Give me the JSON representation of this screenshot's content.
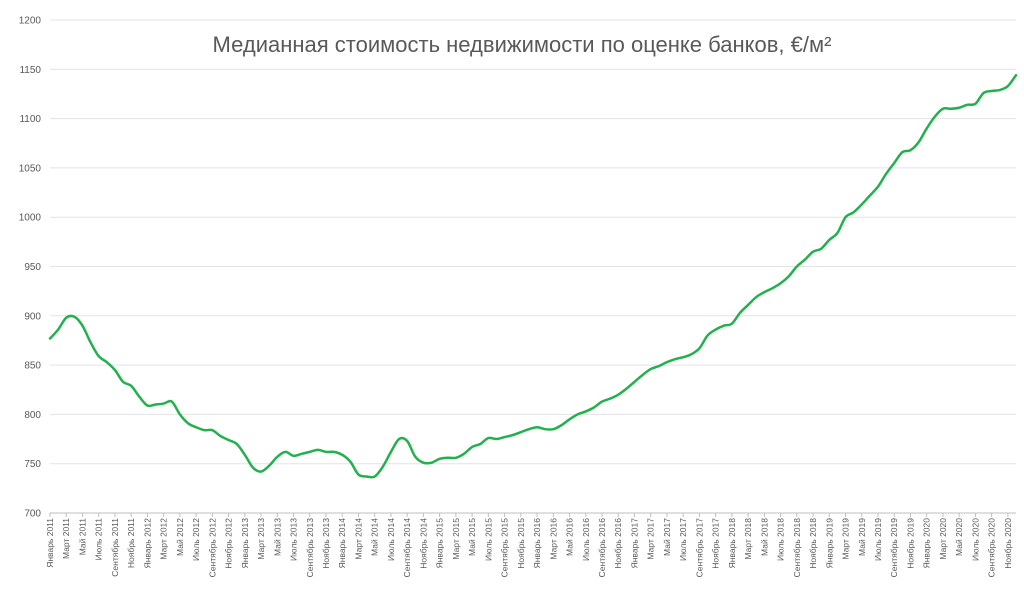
{
  "chart_data": {
    "type": "line",
    "title": "Медианная стоимость недвижимости по оценке банков, €/м²",
    "xlabel": "",
    "ylabel": "",
    "ylim": [
      700,
      1200
    ],
    "yticks": [
      700,
      750,
      800,
      850,
      900,
      950,
      1000,
      1050,
      1100,
      1150,
      1200
    ],
    "grid": true,
    "legend": "none",
    "line_color": "#22b14c",
    "x_tick_labels": [
      "Январь 2011",
      "Март 2011",
      "Май 2011",
      "Июль 2011",
      "Сентябрь 2011",
      "Ноябрь 2011",
      "Январь 2012",
      "Март 2012",
      "Май 2012",
      "Июль 2012",
      "Сентябрь 2012",
      "Ноябрь 2012",
      "Январь 2013",
      "Март 2013",
      "Май 2013",
      "Июль 2013",
      "Сентябрь 2013",
      "Ноябрь 2013",
      "Январь 2014",
      "Март 2014",
      "Май 2014",
      "Июль 2014",
      "Сентябрь 2014",
      "Ноябрь 2014",
      "Январь 2015",
      "Март 2015",
      "Май 2015",
      "Июль 2015",
      "Сентябрь 2015",
      "Ноябрь 2015",
      "Январь 2016",
      "Март 2016",
      "Май 2016",
      "Июль 2016",
      "Сентябрь 2016",
      "Ноябрь 2016",
      "Январь 2017",
      "Март 2017",
      "Май 2017",
      "Июль 2017",
      "Сентябрь 2017",
      "Ноябрь 2017",
      "Январь 2018",
      "Март 2018",
      "Май 2018",
      "Июль 2018",
      "Сентябрь 2018",
      "Ноябрь 2018",
      "Январь 2019",
      "Март 2019",
      "Май 2019",
      "Июль 2019",
      "Сентябрь 2019",
      "Ноябрь 2019",
      "Январь 2020",
      "Март 2020",
      "Май 2020",
      "Июль 2020",
      "Сентябрь 2020",
      "Ноябрь 2020"
    ],
    "x": [
      "2011-01",
      "2011-02",
      "2011-03",
      "2011-04",
      "2011-05",
      "2011-06",
      "2011-07",
      "2011-08",
      "2011-09",
      "2011-10",
      "2011-11",
      "2011-12",
      "2012-01",
      "2012-02",
      "2012-03",
      "2012-04",
      "2012-05",
      "2012-06",
      "2012-07",
      "2012-08",
      "2012-09",
      "2012-10",
      "2012-11",
      "2012-12",
      "2013-01",
      "2013-02",
      "2013-03",
      "2013-04",
      "2013-05",
      "2013-06",
      "2013-07",
      "2013-08",
      "2013-09",
      "2013-10",
      "2013-11",
      "2013-12",
      "2014-01",
      "2014-02",
      "2014-03",
      "2014-04",
      "2014-05",
      "2014-06",
      "2014-07",
      "2014-08",
      "2014-09",
      "2014-10",
      "2014-11",
      "2014-12",
      "2015-01",
      "2015-02",
      "2015-03",
      "2015-04",
      "2015-05",
      "2015-06",
      "2015-07",
      "2015-08",
      "2015-09",
      "2015-10",
      "2015-11",
      "2015-12",
      "2016-01",
      "2016-02",
      "2016-03",
      "2016-04",
      "2016-05",
      "2016-06",
      "2016-07",
      "2016-08",
      "2016-09",
      "2016-10",
      "2016-11",
      "2016-12",
      "2017-01",
      "2017-02",
      "2017-03",
      "2017-04",
      "2017-05",
      "2017-06",
      "2017-07",
      "2017-08",
      "2017-09",
      "2017-10",
      "2017-11",
      "2017-12",
      "2018-01",
      "2018-02",
      "2018-03",
      "2018-04",
      "2018-05",
      "2018-06",
      "2018-07",
      "2018-08",
      "2018-09",
      "2018-10",
      "2018-11",
      "2018-12",
      "2019-01",
      "2019-02",
      "2019-03",
      "2019-04",
      "2019-05",
      "2019-06",
      "2019-07",
      "2019-08",
      "2019-09",
      "2019-10",
      "2019-11",
      "2019-12",
      "2020-01",
      "2020-02",
      "2020-03",
      "2020-04",
      "2020-05",
      "2020-06",
      "2020-07",
      "2020-08",
      "2020-09",
      "2020-10",
      "2020-11",
      "2020-12"
    ],
    "series": [
      {
        "values": [
          877,
          886,
          898,
          899,
          890,
          873,
          859,
          853,
          845,
          833,
          829,
          818,
          809,
          810,
          811,
          813,
          800,
          791,
          787,
          784,
          784,
          778,
          774,
          770,
          759,
          746,
          742,
          748,
          757,
          762,
          758,
          760,
          762,
          764,
          762,
          762,
          759,
          752,
          739,
          737,
          737,
          747,
          762,
          775,
          773,
          757,
          751,
          751,
          755,
          756,
          756,
          760,
          767,
          770,
          776,
          775,
          777,
          779,
          782,
          785,
          787,
          785,
          785,
          789,
          795,
          800,
          803,
          807,
          813,
          816,
          820,
          826,
          833,
          840,
          846,
          849,
          853,
          856,
          858,
          861,
          867,
          880,
          886,
          890,
          892,
          903,
          911,
          919,
          924,
          928,
          933,
          940,
          950,
          957,
          965,
          968,
          977,
          984,
          1000,
          1005,
          1013,
          1022,
          1031,
          1044,
          1055,
          1066,
          1068,
          1076,
          1090,
          1102,
          1110,
          1110,
          1111,
          1114,
          1115,
          1126,
          1128,
          1129,
          1133,
          1144
        ]
      }
    ]
  }
}
